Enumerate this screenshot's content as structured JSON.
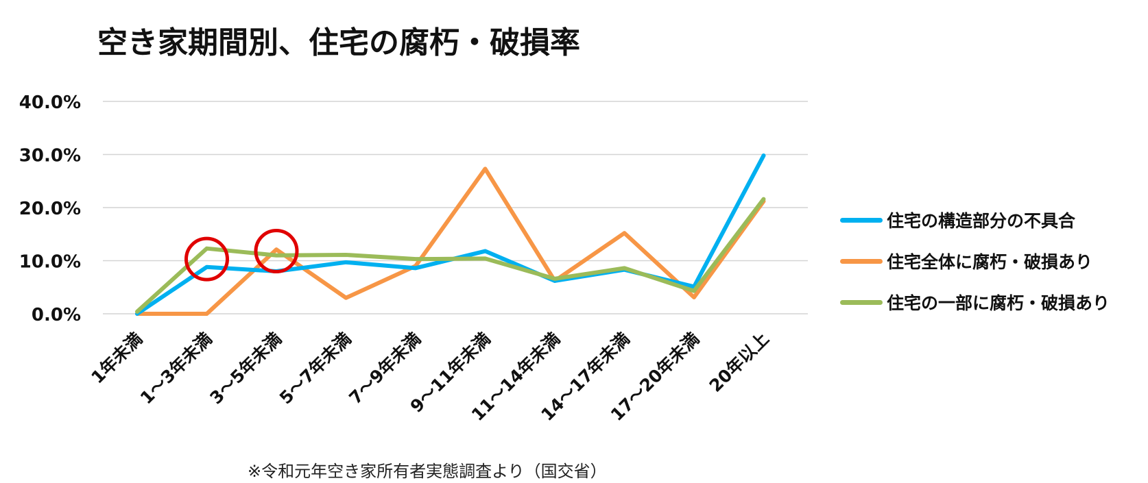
{
  "chart_data": {
    "type": "line",
    "title": "空き家期間別、住宅の腐朽・破損率",
    "categories": [
      "1年未満",
      "1～3年未満",
      "3～5年未満",
      "5～7年未満",
      "7～9年未満",
      "9～11年未満",
      "11～14年未満",
      "14～17年未満",
      "17～20年未満",
      "20年以上"
    ],
    "ylim": [
      0,
      40
    ],
    "yticks": [
      "0.0%",
      "10.0%",
      "20.0%",
      "30.0%",
      "40.0%"
    ],
    "ytick_values": [
      0,
      10,
      20,
      30,
      40
    ],
    "grid": true,
    "legend_position": "right",
    "series": [
      {
        "name": "住宅の構造部分の不具合",
        "color": "#00b0f0",
        "values": [
          0.0,
          8.8,
          8.0,
          9.7,
          8.6,
          11.8,
          6.2,
          8.3,
          5.1,
          29.8
        ]
      },
      {
        "name": "住宅全体に腐朽・破損あり",
        "color": "#f79646",
        "values": [
          0.0,
          0.0,
          12.1,
          3.0,
          9.0,
          27.3,
          6.2,
          15.2,
          3.1,
          21.2
        ]
      },
      {
        "name": "住宅の一部に腐朽・破損あり",
        "color": "#9bbb59",
        "values": [
          0.4,
          12.3,
          11.0,
          11.1,
          10.3,
          10.4,
          6.6,
          8.6,
          4.3,
          21.6
        ]
      }
    ],
    "annotations": [
      {
        "type": "circle",
        "category_index": 1,
        "value": 10.3,
        "color": "#e00000"
      },
      {
        "type": "circle",
        "category_index": 2,
        "value": 11.8,
        "color": "#e00000"
      }
    ]
  },
  "footnote": "※令和元年空き家所有者実態調査より（国交省）"
}
